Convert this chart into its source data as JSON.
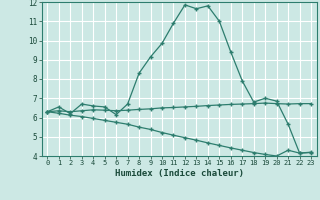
{
  "xlabel": "Humidex (Indice chaleur)",
  "ylabel": "",
  "bg_color": "#cce8e4",
  "grid_color": "#b0d8d4",
  "line_color": "#2d7d6e",
  "xlim": [
    -0.5,
    23.5
  ],
  "ylim": [
    4,
    12
  ],
  "yticks": [
    4,
    5,
    6,
    7,
    8,
    9,
    10,
    11,
    12
  ],
  "xticks": [
    0,
    1,
    2,
    3,
    4,
    5,
    6,
    7,
    8,
    9,
    10,
    11,
    12,
    13,
    14,
    15,
    16,
    17,
    18,
    19,
    20,
    21,
    22,
    23
  ],
  "line1_x": [
    0,
    1,
    2,
    3,
    4,
    5,
    6,
    7,
    8,
    9,
    10,
    11,
    12,
    13,
    14,
    15,
    16,
    17,
    18,
    19,
    20,
    21,
    22,
    23
  ],
  "line1_y": [
    6.3,
    6.55,
    6.2,
    6.7,
    6.6,
    6.55,
    6.15,
    6.7,
    8.3,
    9.15,
    9.85,
    10.9,
    11.85,
    11.65,
    11.8,
    11.0,
    9.4,
    7.9,
    6.8,
    7.0,
    6.85,
    5.65,
    4.15,
    4.2
  ],
  "line2_x": [
    0,
    1,
    2,
    3,
    4,
    5,
    6,
    7,
    8,
    9,
    10,
    11,
    12,
    13,
    14,
    15,
    16,
    17,
    18,
    19,
    20,
    21,
    22,
    23
  ],
  "line2_y": [
    6.3,
    6.35,
    6.3,
    6.35,
    6.4,
    6.38,
    6.35,
    6.38,
    6.42,
    6.45,
    6.5,
    6.52,
    6.55,
    6.58,
    6.62,
    6.65,
    6.68,
    6.7,
    6.72,
    6.75,
    6.72,
    6.7,
    6.72,
    6.72
  ],
  "line3_x": [
    0,
    1,
    2,
    3,
    4,
    5,
    6,
    7,
    8,
    9,
    10,
    11,
    12,
    13,
    14,
    15,
    16,
    17,
    18,
    19,
    20,
    21,
    22,
    23
  ],
  "line3_y": [
    6.3,
    6.22,
    6.12,
    6.05,
    5.95,
    5.85,
    5.75,
    5.65,
    5.5,
    5.38,
    5.22,
    5.08,
    4.95,
    4.82,
    4.68,
    4.55,
    4.42,
    4.3,
    4.18,
    4.08,
    4.0,
    4.3,
    4.15,
    4.18
  ]
}
